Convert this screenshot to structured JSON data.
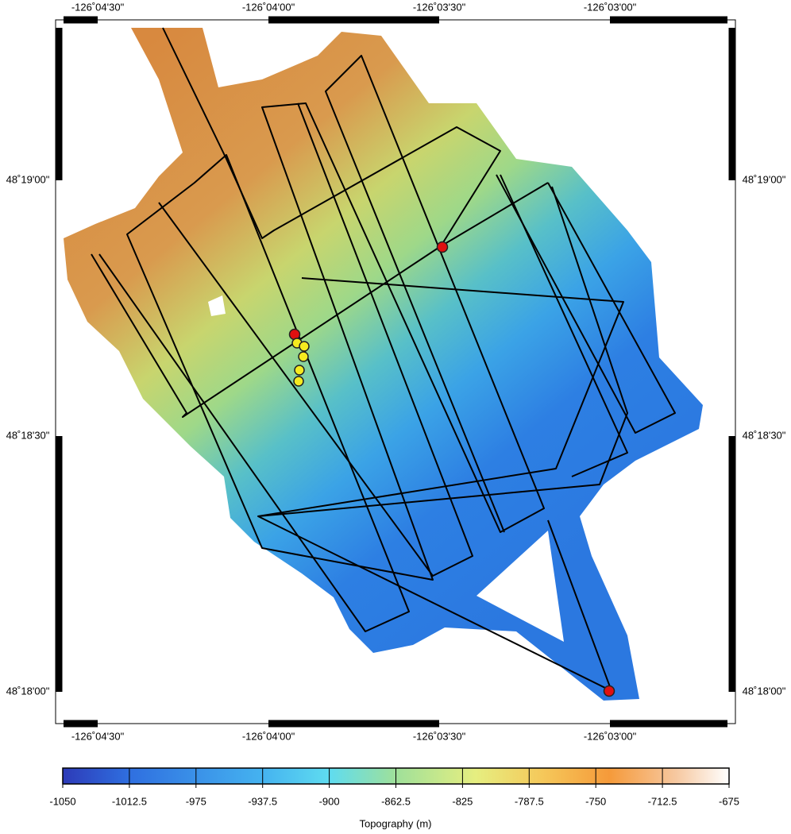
{
  "map": {
    "lon_labels": [
      "-126˚04'30\"",
      "-126˚04'00\"",
      "-126˚03'30\"",
      "-126˚03'00\""
    ],
    "lat_labels": [
      "48˚19'00\"",
      "48˚18'30\"",
      "48˚18'00\""
    ]
  },
  "colorbar": {
    "label": "Topography (m)",
    "range": [
      -1050,
      -675
    ],
    "ticks": [
      -1050,
      -1012.5,
      -975,
      -937.5,
      -900,
      -862.5,
      -825,
      -787.5,
      -750,
      -712.5,
      -675
    ]
  }
}
